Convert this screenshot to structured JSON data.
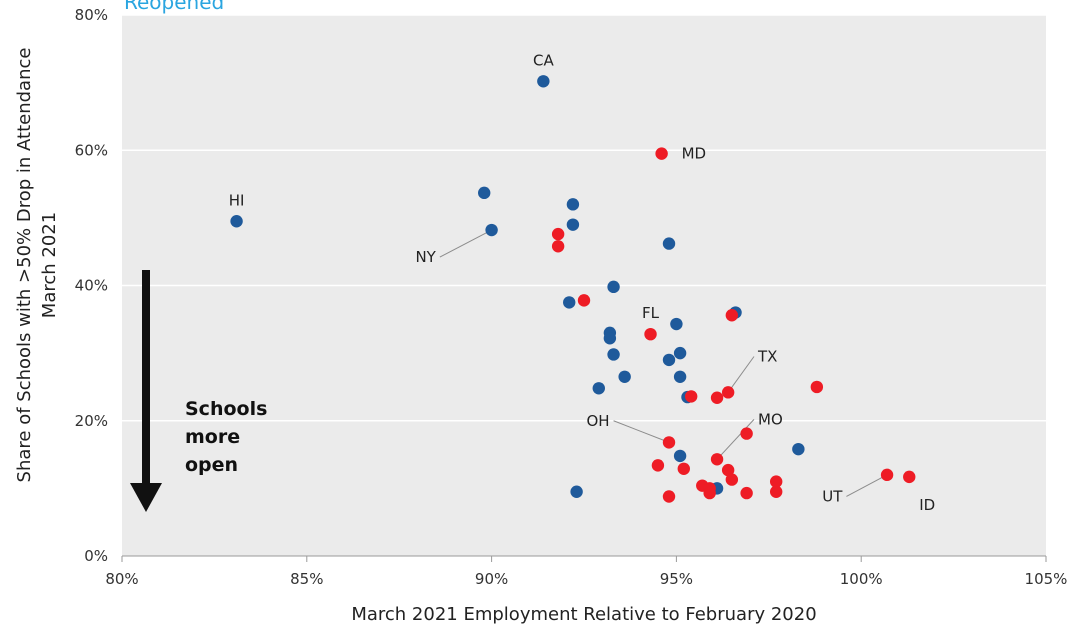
{
  "header": {
    "partial_label": "Reopened"
  },
  "annotation": {
    "lines": [
      "Schools",
      "more",
      "open"
    ]
  },
  "colors": {
    "blue": "#1f5a9b",
    "red": "#ee1c25",
    "plot_bg": "#ebebeb",
    "grid": "#ffffff",
    "top_label": "#2aa5e0"
  },
  "chart_data": {
    "type": "scatter",
    "xlabel": "March 2021 Employment Relative to February 2020",
    "ylabel_lines": [
      "Share of Schools with >50% Drop in Attendance",
      "March 2021"
    ],
    "xlim": [
      80,
      105
    ],
    "ylim": [
      0,
      80
    ],
    "x_ticks": [
      "80%",
      "85%",
      "90%",
      "95%",
      "100%",
      "105%"
    ],
    "y_ticks": [
      "0%",
      "20%",
      "40%",
      "60%",
      "80%"
    ],
    "grid": "horizontal",
    "series": [
      {
        "color": "blue",
        "points": [
          [
            83.1,
            49.5
          ],
          [
            89.8,
            53.7
          ],
          [
            90.0,
            48.2
          ],
          [
            91.4,
            70.2
          ],
          [
            92.2,
            52.0
          ],
          [
            92.2,
            49.0
          ],
          [
            94.8,
            46.2
          ],
          [
            92.1,
            37.5
          ],
          [
            93.3,
            39.8
          ],
          [
            95.0,
            34.3
          ],
          [
            96.6,
            36.0
          ],
          [
            93.2,
            33.0
          ],
          [
            93.2,
            32.2
          ],
          [
            93.3,
            29.8
          ],
          [
            94.8,
            29.0
          ],
          [
            95.1,
            30.0
          ],
          [
            95.1,
            26.5
          ],
          [
            93.6,
            26.5
          ],
          [
            92.9,
            24.8
          ],
          [
            95.3,
            23.5
          ],
          [
            95.1,
            14.8
          ],
          [
            98.3,
            15.8
          ],
          [
            96.1,
            10.0
          ],
          [
            92.3,
            9.5
          ]
        ]
      },
      {
        "color": "red",
        "points": [
          [
            94.6,
            59.5
          ],
          [
            91.8,
            47.6
          ],
          [
            91.8,
            45.8
          ],
          [
            92.5,
            37.8
          ],
          [
            94.3,
            32.8
          ],
          [
            96.5,
            35.6
          ],
          [
            98.8,
            25.0
          ],
          [
            96.4,
            24.2
          ],
          [
            96.1,
            23.4
          ],
          [
            95.4,
            23.6
          ],
          [
            94.8,
            16.8
          ],
          [
            96.9,
            18.1
          ],
          [
            96.1,
            14.3
          ],
          [
            94.5,
            13.4
          ],
          [
            95.2,
            12.9
          ],
          [
            96.4,
            12.7
          ],
          [
            96.5,
            11.3
          ],
          [
            95.7,
            10.4
          ],
          [
            95.9,
            10.0
          ],
          [
            95.9,
            9.3
          ],
          [
            94.8,
            8.8
          ],
          [
            96.9,
            9.3
          ],
          [
            97.7,
            11.0
          ],
          [
            97.7,
            9.5
          ],
          [
            100.7,
            12.0
          ],
          [
            101.3,
            11.7
          ]
        ]
      }
    ],
    "labels": [
      {
        "text": "CA",
        "x": 91.4,
        "y": 70.2,
        "pos": "above"
      },
      {
        "text": "HI",
        "x": 83.1,
        "y": 49.5,
        "pos": "above"
      },
      {
        "text": "MD",
        "x": 94.6,
        "y": 59.5,
        "pos": "right"
      },
      {
        "text": "NY",
        "x": 90.0,
        "y": 48.2,
        "pos": "leader",
        "lx": 88.6,
        "ly": 44.2
      },
      {
        "text": "FL",
        "x": 94.3,
        "y": 32.8,
        "pos": "above"
      },
      {
        "text": "TX",
        "x": 96.4,
        "y": 24.2,
        "pos": "leader",
        "lx": 97.1,
        "ly": 29.5
      },
      {
        "text": "OH",
        "x": 94.8,
        "y": 16.8,
        "pos": "leader",
        "lx": 93.3,
        "ly": 20.0
      },
      {
        "text": "MO",
        "x": 96.1,
        "y": 14.3,
        "pos": "leader",
        "lx": 97.1,
        "ly": 20.2
      },
      {
        "text": "UT",
        "x": 100.7,
        "y": 12.0,
        "pos": "leader",
        "lx": 99.6,
        "ly": 8.8
      },
      {
        "text": "ID",
        "x": 101.3,
        "y": 11.7,
        "pos": "below"
      }
    ]
  }
}
